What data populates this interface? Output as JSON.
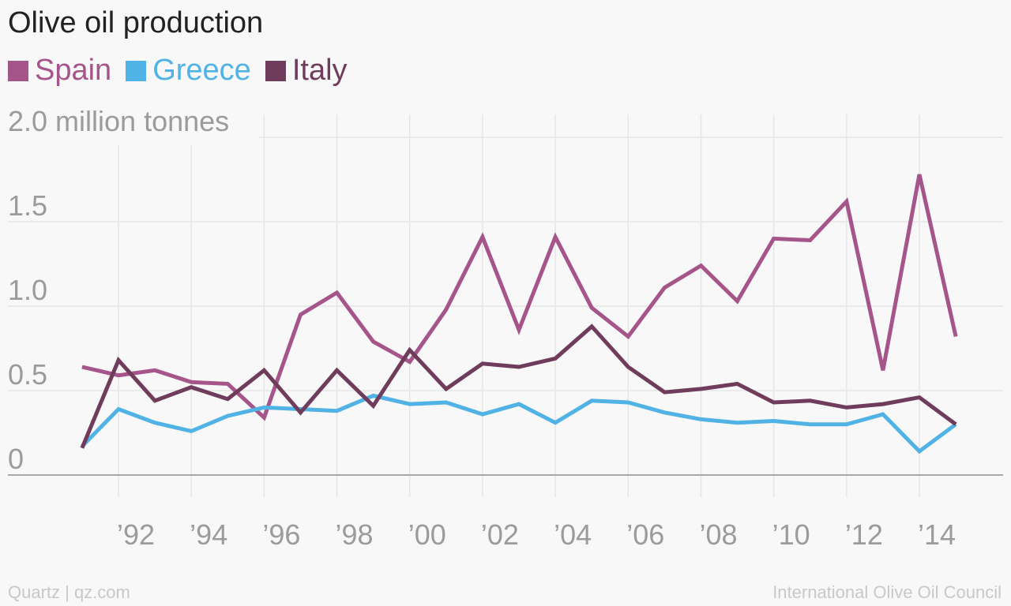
{
  "chart_data": {
    "type": "line",
    "title": "Olive oil production",
    "ylabel": "2.0 million tonnes",
    "ylim": [
      0,
      2.0
    ],
    "y_ticks": [
      {
        "value": 0,
        "label": "0"
      },
      {
        "value": 0.5,
        "label": "0.5"
      },
      {
        "value": 1.0,
        "label": "1.0"
      },
      {
        "value": 1.5,
        "label": "1.5"
      },
      {
        "value": 2.0,
        "label": "2.0 million tonnes"
      }
    ],
    "x": [
      1991,
      1992,
      1993,
      1994,
      1995,
      1996,
      1997,
      1998,
      1999,
      2000,
      2001,
      2002,
      2003,
      2004,
      2005,
      2006,
      2007,
      2008,
      2009,
      2010,
      2011,
      2012,
      2013,
      2014,
      2015
    ],
    "x_ticks": [
      {
        "value": 1992,
        "label": "’92"
      },
      {
        "value": 1994,
        "label": "’94"
      },
      {
        "value": 1996,
        "label": "’96"
      },
      {
        "value": 1998,
        "label": "’98"
      },
      {
        "value": 2000,
        "label": "’00"
      },
      {
        "value": 2002,
        "label": "’02"
      },
      {
        "value": 2004,
        "label": "’04"
      },
      {
        "value": 2006,
        "label": "’06"
      },
      {
        "value": 2008,
        "label": "’08"
      },
      {
        "value": 2010,
        "label": "’10"
      },
      {
        "value": 2012,
        "label": "’12"
      },
      {
        "value": 2014,
        "label": "’14"
      }
    ],
    "grid": true,
    "legend_position": "top-left",
    "series": [
      {
        "name": "Spain",
        "color": "#a6558a",
        "values": [
          0.64,
          0.59,
          0.62,
          0.55,
          0.54,
          0.34,
          0.95,
          1.08,
          0.79,
          0.67,
          0.98,
          1.41,
          0.86,
          1.41,
          0.99,
          0.82,
          1.11,
          1.24,
          1.03,
          1.4,
          1.39,
          1.62,
          0.62,
          1.78,
          0.82
        ]
      },
      {
        "name": "Greece",
        "color": "#51b2e5",
        "values": [
          0.17,
          0.39,
          0.31,
          0.26,
          0.35,
          0.4,
          0.39,
          0.38,
          0.47,
          0.42,
          0.43,
          0.36,
          0.42,
          0.31,
          0.44,
          0.43,
          0.37,
          0.33,
          0.31,
          0.32,
          0.3,
          0.3,
          0.36,
          0.14,
          0.3
        ]
      },
      {
        "name": "Italy",
        "color": "#703c5c",
        "values": [
          0.16,
          0.68,
          0.44,
          0.52,
          0.45,
          0.62,
          0.37,
          0.62,
          0.41,
          0.74,
          0.51,
          0.66,
          0.64,
          0.69,
          0.88,
          0.64,
          0.49,
          0.51,
          0.54,
          0.43,
          0.44,
          0.4,
          0.42,
          0.46,
          0.3
        ]
      }
    ]
  },
  "footer": {
    "left": "Quartz | qz.com",
    "right": "International Olive Oil Council"
  }
}
